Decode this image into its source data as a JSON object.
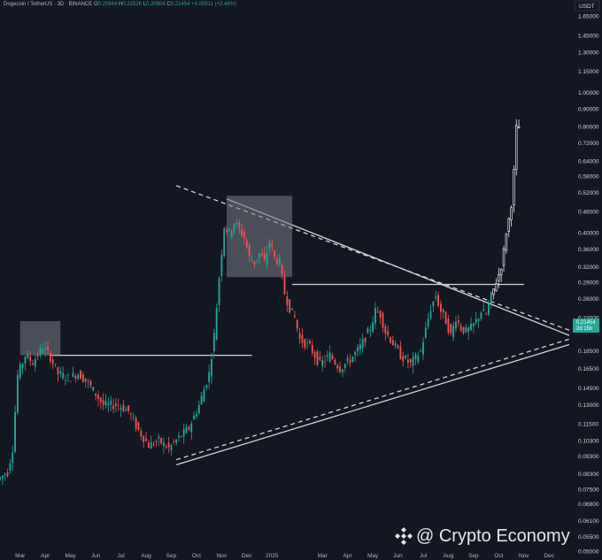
{
  "header": {
    "symbol": "Dogecoin / TetherUS · 3D · BINANCE",
    "o_label": "O",
    "o": "0.20944",
    "h_label": "H",
    "h": "0.21526",
    "l_label": "L",
    "l": "0.20804",
    "c_label": "C",
    "c": "0.21454",
    "chg": "+0.00511 (+2.44%)"
  },
  "currency": "USDT",
  "price_tag": {
    "value": "0.21454",
    "countdown": "2d 15h"
  },
  "watermark": "@ Crypto Economy",
  "colors": {
    "up": "#26a69a",
    "down": "#ef5350",
    "bg": "#131722",
    "line": "#d1d4dc",
    "box": "#787b86"
  },
  "chart_data": {
    "type": "candlestick",
    "yscale": "log",
    "ylim": [
      0.0495,
      1.75
    ],
    "y_ticks": [
      1.65,
      1.45,
      1.3,
      1.15,
      1.0,
      0.9,
      0.8,
      0.72,
      0.64,
      0.58,
      0.52,
      0.46,
      0.4,
      0.36,
      0.32,
      0.29,
      0.26,
      0.23,
      0.185,
      0.165,
      0.145,
      0.13,
      0.115,
      0.103,
      0.093,
      0.083,
      0.075,
      0.068,
      0.061,
      0.055,
      0.05
    ],
    "y_tick_labels": [
      "1.65000",
      "1.45000",
      "1.30000",
      "1.15000",
      "1.00000",
      "0.90000",
      "0.80000",
      "0.72000",
      "0.64000",
      "0.58000",
      "0.52000",
      "0.46000",
      "0.40000",
      "0.36000",
      "0.32000",
      "0.29000",
      "0.26000",
      "0.23000",
      "0.18500",
      "0.16500",
      "0.14500",
      "0.13000",
      "0.11500",
      "0.10300",
      "0.09300",
      "0.08300",
      "0.07500",
      "0.06800",
      "0.06100",
      "0.05500",
      "0.05000"
    ],
    "x_ticks": [
      {
        "label": "Mar",
        "t": 8
      },
      {
        "label": "Apr",
        "t": 18
      },
      {
        "label": "May",
        "t": 28
      },
      {
        "label": "Jun",
        "t": 38
      },
      {
        "label": "Jul",
        "t": 48
      },
      {
        "label": "Aug",
        "t": 58
      },
      {
        "label": "Sep",
        "t": 68
      },
      {
        "label": "Oct",
        "t": 78
      },
      {
        "label": "Nov",
        "t": 88
      },
      {
        "label": "Dec",
        "t": 98
      },
      {
        "label": "2025",
        "t": 108
      },
      {
        "label": "Mar",
        "t": 128
      },
      {
        "label": "Apr",
        "t": 138
      },
      {
        "label": "May",
        "t": 148
      },
      {
        "label": "Jun",
        "t": 158
      },
      {
        "label": "Jul",
        "t": 168
      },
      {
        "label": "Aug",
        "t": 178
      },
      {
        "label": "Sep",
        "t": 188
      },
      {
        "label": "Oct",
        "t": 198
      },
      {
        "label": "Nov",
        "t": 208
      },
      {
        "label": "Dec",
        "t": 218
      }
    ],
    "price_anchors": [
      [
        0,
        0.08
      ],
      [
        4,
        0.084
      ],
      [
        6,
        0.098
      ],
      [
        8,
        0.158
      ],
      [
        11,
        0.18
      ],
      [
        14,
        0.172
      ],
      [
        18,
        0.19
      ],
      [
        21,
        0.178
      ],
      [
        24,
        0.16
      ],
      [
        28,
        0.155
      ],
      [
        32,
        0.16
      ],
      [
        36,
        0.15
      ],
      [
        42,
        0.13
      ],
      [
        48,
        0.13
      ],
      [
        52,
        0.125
      ],
      [
        56,
        0.11
      ],
      [
        60,
        0.1
      ],
      [
        64,
        0.103
      ],
      [
        68,
        0.098
      ],
      [
        72,
        0.105
      ],
      [
        76,
        0.112
      ],
      [
        80,
        0.13
      ],
      [
        84,
        0.16
      ],
      [
        86,
        0.205
      ],
      [
        88,
        0.3
      ],
      [
        90,
        0.42
      ],
      [
        92,
        0.4
      ],
      [
        94,
        0.43
      ],
      [
        98,
        0.39
      ],
      [
        100,
        0.34
      ],
      [
        102,
        0.33
      ],
      [
        104,
        0.35
      ],
      [
        106,
        0.33
      ],
      [
        108,
        0.38
      ],
      [
        110,
        0.34
      ],
      [
        112,
        0.33
      ],
      [
        114,
        0.27
      ],
      [
        116,
        0.245
      ],
      [
        118,
        0.23
      ],
      [
        120,
        0.2
      ],
      [
        124,
        0.19
      ],
      [
        128,
        0.17
      ],
      [
        132,
        0.18
      ],
      [
        136,
        0.165
      ],
      [
        140,
        0.175
      ],
      [
        144,
        0.19
      ],
      [
        148,
        0.215
      ],
      [
        150,
        0.24
      ],
      [
        152,
        0.235
      ],
      [
        154,
        0.21
      ],
      [
        156,
        0.2
      ],
      [
        160,
        0.18
      ],
      [
        164,
        0.17
      ],
      [
        168,
        0.185
      ],
      [
        172,
        0.245
      ],
      [
        174,
        0.265
      ],
      [
        176,
        0.24
      ],
      [
        178,
        0.225
      ],
      [
        180,
        0.205
      ],
      [
        182,
        0.23
      ],
      [
        184,
        0.215
      ],
      [
        186,
        0.21
      ],
      [
        188,
        0.215
      ],
      [
        190,
        0.225
      ],
      [
        192,
        0.24
      ],
      [
        194,
        0.235
      ],
      [
        196,
        0.265
      ],
      [
        198,
        0.29
      ],
      [
        200,
        0.32
      ],
      [
        202,
        0.4
      ],
      [
        204,
        0.48
      ],
      [
        205,
        0.6
      ],
      [
        206,
        0.8
      ]
    ],
    "boxes": [
      {
        "t0": 8,
        "t1": 24,
        "p0": 0.18,
        "p1": 0.225
      },
      {
        "t0": 90,
        "t1": 116,
        "p0": 0.3,
        "p1": 0.51
      }
    ],
    "trendlines": [
      {
        "style": "solid",
        "t0": 90,
        "p0": 0.5,
        "t1": 226,
        "p1": 0.205
      },
      {
        "style": "dashed",
        "t0": 70,
        "p0": 0.545,
        "t1": 226,
        "p1": 0.212
      },
      {
        "style": "solid",
        "t0": 70,
        "p0": 0.088,
        "t1": 226,
        "p1": 0.193
      },
      {
        "style": "dashed",
        "t0": 70,
        "p0": 0.091,
        "t1": 226,
        "p1": 0.2
      },
      {
        "style": "solid",
        "t0": 20,
        "p0": 0.18,
        "t1": 100,
        "p1": 0.18
      },
      {
        "style": "solid",
        "t0": 116,
        "p0": 0.286,
        "t1": 208,
        "p1": 0.286
      }
    ]
  }
}
